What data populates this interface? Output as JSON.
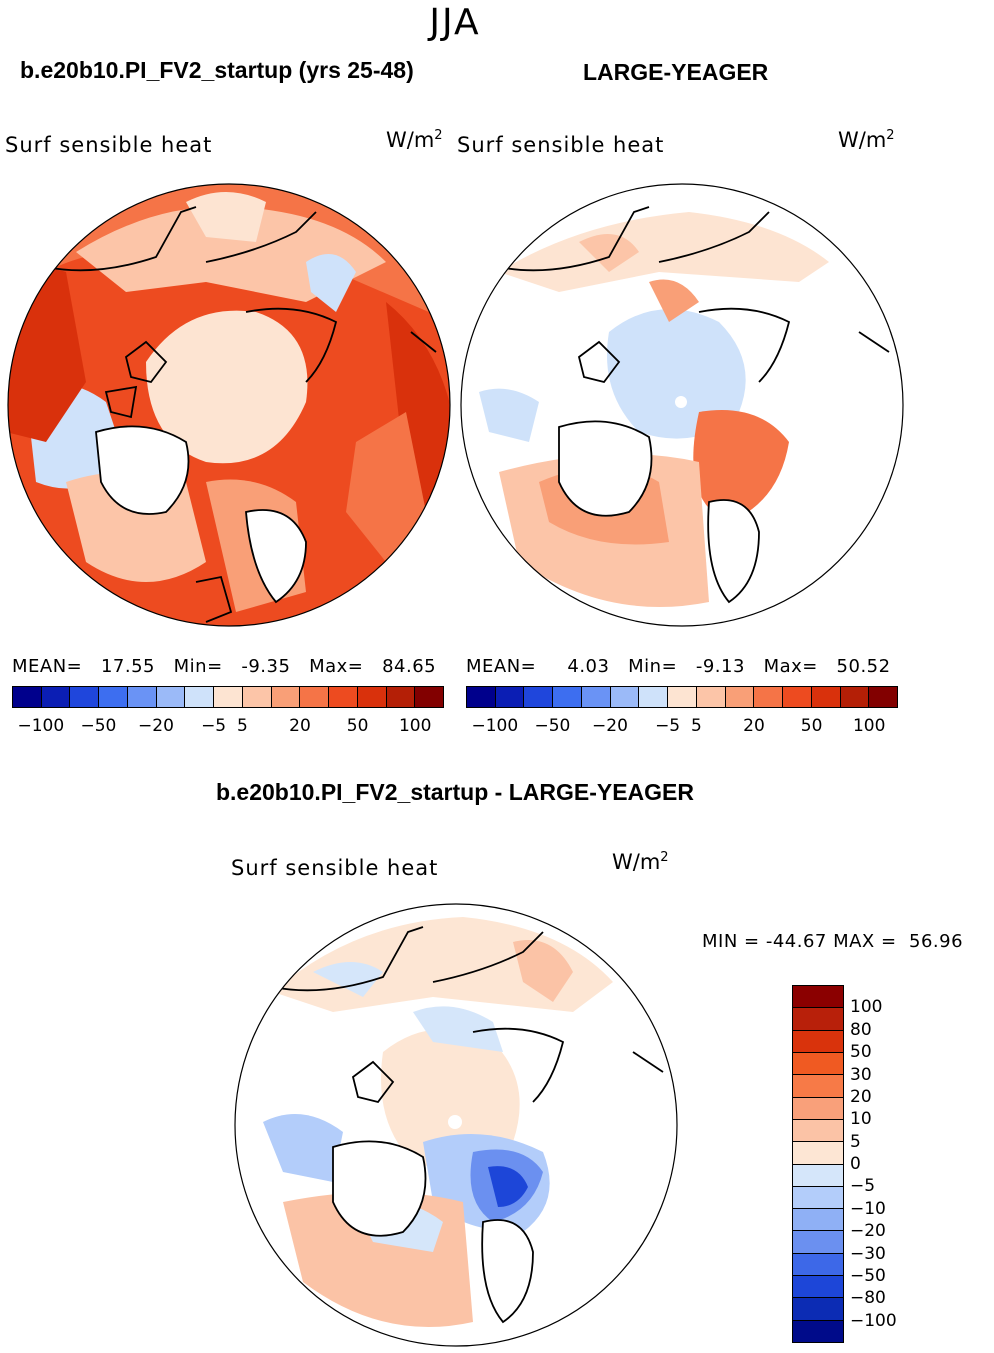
{
  "season": "JJA",
  "panels": [
    {
      "case": "b.e20b10.PI_FV2_startup (yrs 25-48)",
      "field": "Surf sensible heat",
      "units_base": "W/m",
      "units_exp": "2",
      "mean_label": "MEAN=",
      "mean": "17.55",
      "min_label": "Min=",
      "min": "-9.35",
      "max_label": "Max=",
      "max": "84.65"
    },
    {
      "case": "LARGE-YEAGER",
      "field": "Surf sensible heat",
      "units_base": "W/m",
      "units_exp": "2",
      "mean_label": "MEAN=",
      "mean": "4.03",
      "min_label": "Min=",
      "min": "-9.13",
      "max_label": "Max=",
      "max": "50.52"
    }
  ],
  "diff": {
    "title": "b.e20b10.PI_FV2_startup - LARGE-YEAGER",
    "field": "Surf sensible heat",
    "units_base": "W/m",
    "units_exp": "2",
    "minmax": "MIN = -44.67 MAX =  56.96"
  },
  "colorbar_h": {
    "colors": [
      "#00008c",
      "#0b1eb4",
      "#1f46dc",
      "#3d6ef0",
      "#6a93f5",
      "#9bbaf8",
      "#cfe2fa",
      "#fde4d2",
      "#fcc5a8",
      "#f99f77",
      "#f57447",
      "#ed4b20",
      "#d9310c",
      "#b41f06",
      "#820000"
    ],
    "ticks": [
      "-100",
      "-50",
      "-20",
      "-5",
      "5",
      "20",
      "50",
      "100"
    ]
  },
  "colorbar_v": {
    "colors": [
      "#8b0000",
      "#b8200a",
      "#d9330c",
      "#f05a22",
      "#f77a47",
      "#f9a07a",
      "#fbc3a6",
      "#fde6d4",
      "#d5e6fa",
      "#b3cdfa",
      "#8fb0f5",
      "#6b90f0",
      "#3d68e8",
      "#1d46d8",
      "#0c2cb4",
      "#000b8a"
    ],
    "ticks": [
      "100",
      "80",
      "50",
      "30",
      "20",
      "10",
      "5",
      "0",
      "-5",
      "-10",
      "-20",
      "-30",
      "-50",
      "-80",
      "-100"
    ]
  },
  "chart_data": {
    "type": "heatmap",
    "title": "JJA",
    "maps": [
      {
        "name": "b.e20b10.PI_FV2_startup (yrs 25-48)",
        "variable": "Surf sensible heat",
        "units": "W/m2",
        "mean": 17.55,
        "min": -9.35,
        "max": 84.65
      },
      {
        "name": "LARGE-YEAGER",
        "variable": "Surf sensible heat",
        "units": "W/m2",
        "mean": 4.03,
        "min": -9.13,
        "max": 50.52
      },
      {
        "name": "b.e20b10.PI_FV2_startup - LARGE-YEAGER",
        "variable": "Surf sensible heat",
        "units": "W/m2",
        "min": -44.67,
        "max": 56.96
      }
    ],
    "contour_levels_model": [
      -100,
      -80,
      -50,
      -30,
      -20,
      -10,
      -5,
      0,
      5,
      10,
      20,
      30,
      50,
      80,
      100
    ],
    "contour_levels_diff": [
      -100,
      -80,
      -50,
      -30,
      -20,
      -10,
      -5,
      0,
      5,
      10,
      20,
      30,
      50,
      80,
      100
    ]
  }
}
